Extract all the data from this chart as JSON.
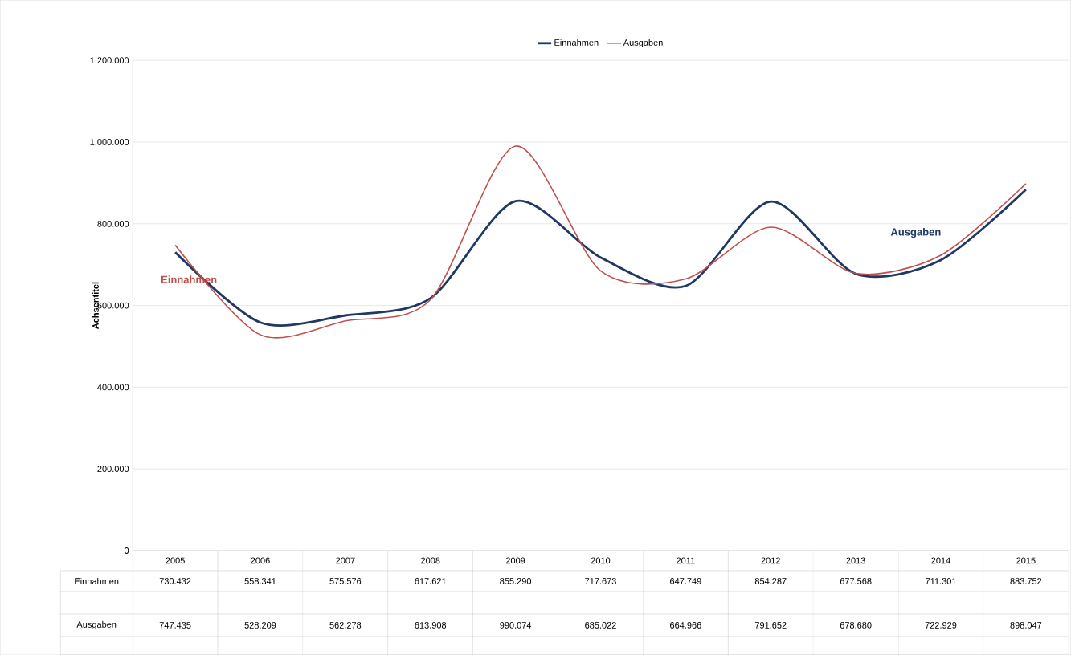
{
  "chart_data": {
    "type": "line",
    "ylabel": "Achsentitel",
    "categories": [
      "2005",
      "2006",
      "2007",
      "2008",
      "2009",
      "2010",
      "2011",
      "2012",
      "2013",
      "2014",
      "2015"
    ],
    "series": [
      {
        "name": "Einnahmen",
        "color": "#1f3864",
        "values": [
          730432,
          558341,
          575576,
          617621,
          855290,
          717673,
          647749,
          854287,
          677568,
          711301,
          883752
        ],
        "value_labels": [
          "730.432",
          "558.341",
          "575.576",
          "617.621",
          "855.290",
          "717.673",
          "647.749",
          "854.287",
          "677.568",
          "711.301",
          "883.752"
        ]
      },
      {
        "name": "Ausgaben",
        "color": "#c0504d",
        "values": [
          747435,
          528209,
          562278,
          613908,
          990074,
          685022,
          664966,
          791652,
          678680,
          722929,
          898047
        ],
        "value_labels": [
          "747.435",
          "528.209",
          "562.278",
          "613.908",
          "990.074",
          "685.022",
          "664.966",
          "791.652",
          "678.680",
          "722.929",
          "898.047"
        ]
      }
    ],
    "ylim": [
      0,
      1200000
    ],
    "yticks": [
      0,
      {
        "value": 200000,
        "label": "200.000"
      },
      {
        "value": 400000,
        "label": "400.000"
      },
      {
        "value": 600000,
        "label": "600.000"
      },
      {
        "value": 800000,
        "label": "800.000"
      },
      {
        "value": 1000000,
        "label": "1.000.000"
      },
      {
        "value": 1200000,
        "label": "1.200.000"
      }
    ],
    "grid": "y",
    "legend": "top",
    "annotations": [
      "Einnahmen",
      "Ausgaben"
    ]
  }
}
